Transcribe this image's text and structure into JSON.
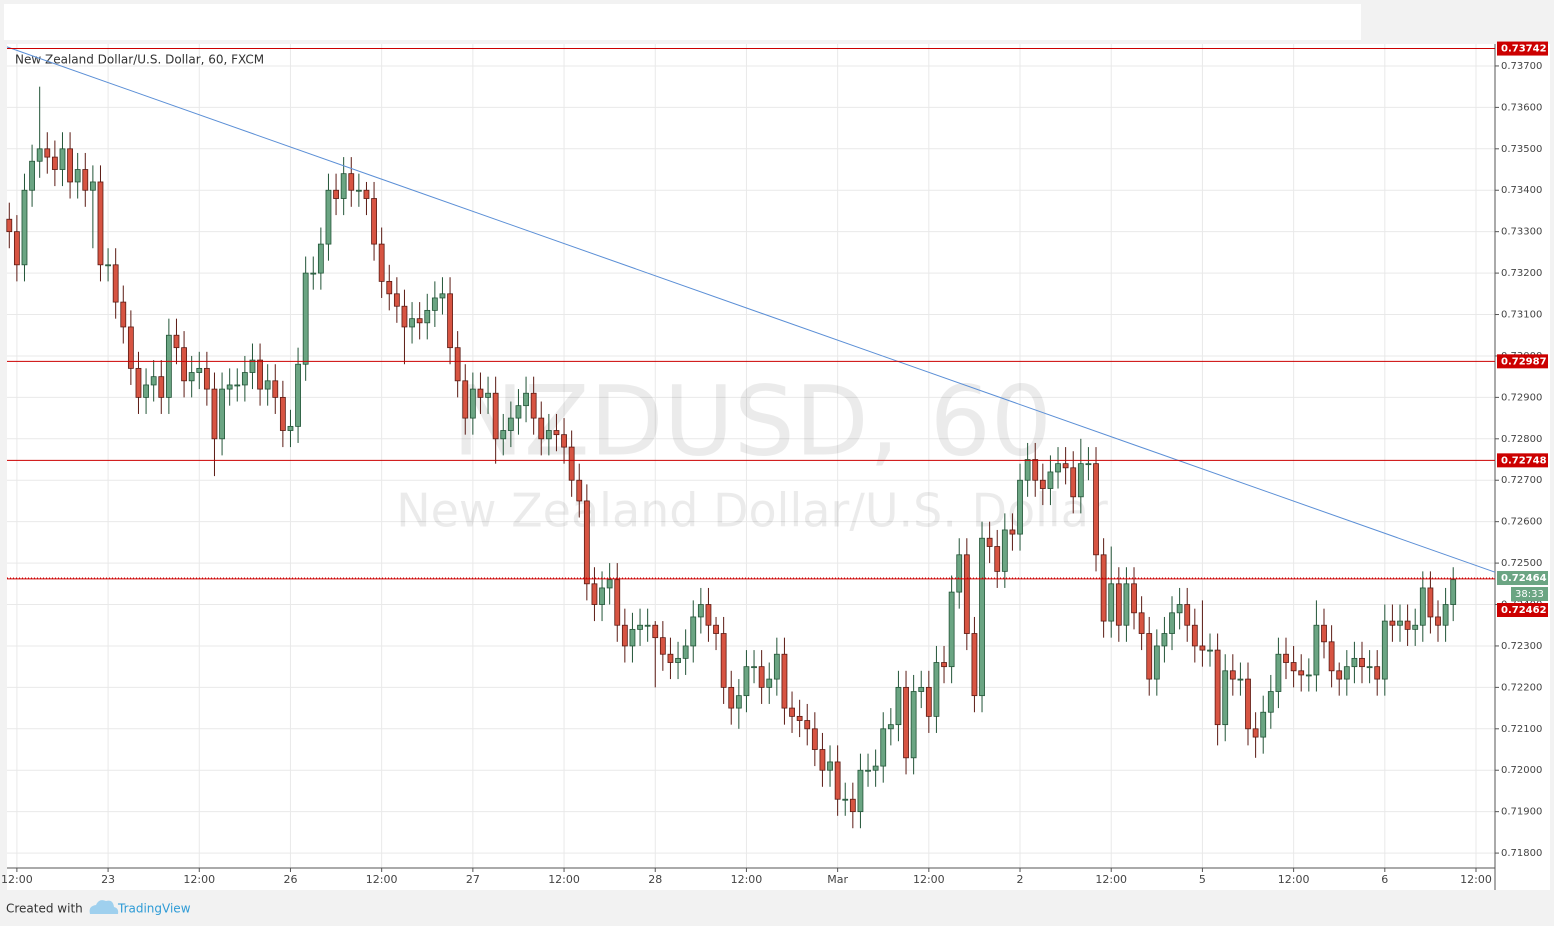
{
  "chart_data": {
    "type": "candlestick",
    "title": "New Zealand Dollar/U.S. Dollar, 60, FXCM",
    "watermark_symbol": "NZDUSD, 60",
    "watermark_name": "New Zealand Dollar/U.S. Dollar",
    "up_color": "#6ba583",
    "down_color": "#d75442",
    "grid": true,
    "xlim": [
      -13.3,
      182.5
    ],
    "ylim": [
      0.71764,
      0.73753
    ],
    "xticks": [
      {
        "value": -12,
        "label": "12:00"
      },
      {
        "value": 0,
        "label": "23"
      },
      {
        "value": 12,
        "label": "12:00"
      },
      {
        "value": 24,
        "label": "26"
      },
      {
        "value": 36,
        "label": "12:00"
      },
      {
        "value": 48,
        "label": "27"
      },
      {
        "value": 60,
        "label": "12:00"
      },
      {
        "value": 72,
        "label": "28"
      },
      {
        "value": 84,
        "label": "12:00"
      },
      {
        "value": 96,
        "label": "Mar"
      },
      {
        "value": 108,
        "label": "12:00"
      },
      {
        "value": 120,
        "label": "2"
      },
      {
        "value": 132,
        "label": "12:00"
      },
      {
        "value": 144,
        "label": "5"
      },
      {
        "value": 156,
        "label": "12:00"
      },
      {
        "value": 168,
        "label": "6"
      },
      {
        "value": 180,
        "label": "12:00"
      }
    ],
    "yticks": [
      {
        "value": 0.718,
        "label": "0.71800"
      },
      {
        "value": 0.719,
        "label": "0.71900"
      },
      {
        "value": 0.72,
        "label": "0.72000"
      },
      {
        "value": 0.721,
        "label": "0.72100"
      },
      {
        "value": 0.722,
        "label": "0.72200"
      },
      {
        "value": 0.723,
        "label": "0.72300"
      },
      {
        "value": 0.724,
        "label": "0.72400"
      },
      {
        "value": 0.725,
        "label": "0.72500"
      },
      {
        "value": 0.726,
        "label": "0.72600"
      },
      {
        "value": 0.727,
        "label": "0.72700"
      },
      {
        "value": 0.728,
        "label": "0.72800"
      },
      {
        "value": 0.729,
        "label": "0.72900"
      },
      {
        "value": 0.73,
        "label": "0.73000"
      },
      {
        "value": 0.731,
        "label": "0.73100"
      },
      {
        "value": 0.732,
        "label": "0.73200"
      },
      {
        "value": 0.733,
        "label": "0.73300"
      },
      {
        "value": 0.734,
        "label": "0.73400"
      },
      {
        "value": 0.735,
        "label": "0.73500"
      },
      {
        "value": 0.736,
        "label": "0.73600"
      },
      {
        "value": 0.737,
        "label": "0.73700"
      }
    ],
    "x": [
      -13,
      -12,
      -11,
      -10,
      -9,
      -8,
      -7,
      -6,
      -5,
      -4,
      -3,
      -2,
      -1,
      0,
      1,
      2,
      3,
      4,
      5,
      6,
      7,
      8,
      9,
      10,
      11,
      12,
      13,
      14,
      15,
      16,
      17,
      18,
      19,
      20,
      21,
      22,
      23,
      24,
      25,
      26,
      27,
      28,
      29,
      30,
      31,
      32,
      33,
      34,
      35,
      36,
      37,
      38,
      39,
      40,
      41,
      42,
      43,
      44,
      45,
      46,
      47,
      48,
      49,
      50,
      51,
      52,
      53,
      54,
      55,
      56,
      57,
      58,
      59,
      60,
      61,
      62,
      63,
      64,
      65,
      66,
      67,
      68,
      69,
      70,
      71,
      72,
      73,
      74,
      75,
      76,
      77,
      78,
      79,
      80,
      81,
      82,
      83,
      84,
      85,
      86,
      87,
      88,
      89,
      90,
      91,
      92,
      93,
      94,
      95,
      96,
      97,
      98,
      99,
      100,
      101,
      102,
      103,
      104,
      105,
      106,
      107,
      108,
      109,
      110,
      111,
      112,
      113,
      114,
      115,
      116,
      117,
      118,
      119,
      120,
      121,
      122,
      123,
      124,
      125,
      126,
      127,
      128,
      129,
      130,
      131,
      132,
      133,
      134,
      135,
      136,
      137,
      138,
      139,
      140,
      141,
      142,
      143,
      144,
      145,
      146,
      147,
      148,
      149,
      150,
      151,
      152,
      153,
      154,
      155,
      156,
      157,
      158,
      159,
      160,
      161,
      162,
      163,
      164,
      165,
      166,
      167,
      168,
      169,
      170,
      171,
      172,
      173,
      174,
      175,
      176,
      177
    ],
    "open": [
      0.7333,
      0.733,
      0.7322,
      0.734,
      0.7347,
      0.735,
      0.7348,
      0.7345,
      0.735,
      0.7342,
      0.7345,
      0.734,
      0.7342,
      0.7322,
      0.7322,
      0.7313,
      0.7307,
      0.7297,
      0.729,
      0.7293,
      0.7295,
      0.729,
      0.7305,
      0.7302,
      0.7294,
      0.7296,
      0.7297,
      0.7292,
      0.728,
      0.7292,
      0.7293,
      0.7293,
      0.7296,
      0.7299,
      0.7292,
      0.7294,
      0.729,
      0.7282,
      0.7283,
      0.7298,
      0.732,
      0.732,
      0.7327,
      0.734,
      0.7338,
      0.7344,
      0.734,
      0.734,
      0.7338,
      0.7327,
      0.7318,
      0.7315,
      0.7312,
      0.7307,
      0.7309,
      0.7308,
      0.7311,
      0.7314,
      0.7315,
      0.7302,
      0.7294,
      0.7285,
      0.7292,
      0.729,
      0.7291,
      0.728,
      0.7282,
      0.7285,
      0.7288,
      0.7291,
      0.7285,
      0.728,
      0.7282,
      0.7281,
      0.7278,
      0.727,
      0.7265,
      0.7245,
      0.724,
      0.7244,
      0.7246,
      0.7235,
      0.723,
      0.7234,
      0.7235,
      0.7235,
      0.7232,
      0.7228,
      0.7226,
      0.7227,
      0.723,
      0.7237,
      0.724,
      0.7235,
      0.7233,
      0.722,
      0.7215,
      0.7218,
      0.7225,
      0.7225,
      0.722,
      0.7222,
      0.7228,
      0.7215,
      0.7213,
      0.7212,
      0.721,
      0.7205,
      0.72,
      0.7202,
      0.7193,
      0.7193,
      0.719,
      0.72,
      0.72,
      0.7201,
      0.721,
      0.7211,
      0.722,
      0.7203,
      0.7219,
      0.722,
      0.7213,
      0.7226,
      0.7225,
      0.7243,
      0.7252,
      0.7233,
      0.7218,
      0.7256,
      0.7254,
      0.7248,
      0.7258,
      0.7257,
      0.727,
      0.7275,
      0.727,
      0.7268,
      0.7272,
      0.7274,
      0.7273,
      0.7266,
      0.7274,
      0.7274,
      0.7252,
      0.7236,
      0.7245,
      0.7235,
      0.7245,
      0.7238,
      0.7233,
      0.7222,
      0.723,
      0.7233,
      0.7238,
      0.724,
      0.7235,
      0.723,
      0.7229,
      0.7229,
      0.7211,
      0.7224,
      0.7222,
      0.7222,
      0.721,
      0.7208,
      0.7214,
      0.7219,
      0.7228,
      0.7226,
      0.7224,
      0.7223,
      0.7223,
      0.7235,
      0.7231,
      0.7224,
      0.7222,
      0.7225,
      0.7227,
      0.7225,
      0.7225,
      0.7222,
      0.7236,
      0.7235,
      0.7236,
      0.7234,
      0.7235,
      0.7244,
      0.7237,
      0.7235,
      0.724
    ],
    "high": [
      0.7337,
      0.7334,
      0.7344,
      0.7351,
      0.7365,
      0.7354,
      0.7352,
      0.7354,
      0.7354,
      0.7349,
      0.7349,
      0.7346,
      0.7346,
      0.7326,
      0.7326,
      0.7317,
      0.7311,
      0.7301,
      0.7297,
      0.7299,
      0.7299,
      0.7309,
      0.7309,
      0.7306,
      0.73,
      0.7301,
      0.7301,
      0.7296,
      0.7296,
      0.7297,
      0.7297,
      0.73,
      0.7303,
      0.7303,
      0.7298,
      0.7298,
      0.7294,
      0.7287,
      0.7302,
      0.7324,
      0.7324,
      0.7331,
      0.7344,
      0.7344,
      0.7348,
      0.7348,
      0.7344,
      0.7342,
      0.7342,
      0.7331,
      0.7322,
      0.7319,
      0.7316,
      0.7313,
      0.7313,
      0.7315,
      0.7318,
      0.7319,
      0.7319,
      0.7306,
      0.7298,
      0.7296,
      0.7296,
      0.7295,
      0.7295,
      0.7286,
      0.7289,
      0.7292,
      0.7295,
      0.7295,
      0.7289,
      0.7286,
      0.7286,
      0.7285,
      0.7282,
      0.7274,
      0.7269,
      0.7249,
      0.7248,
      0.725,
      0.725,
      0.7239,
      0.7238,
      0.7239,
      0.7239,
      0.7236,
      0.7236,
      0.7232,
      0.7231,
      0.7234,
      0.7241,
      0.7244,
      0.7244,
      0.7237,
      0.7237,
      0.7224,
      0.7222,
      0.7229,
      0.7229,
      0.7229,
      0.7226,
      0.7232,
      0.7232,
      0.7219,
      0.7217,
      0.7216,
      0.7214,
      0.7209,
      0.7206,
      0.7206,
      0.7197,
      0.7197,
      0.7204,
      0.7204,
      0.7205,
      0.7214,
      0.7215,
      0.7224,
      0.7224,
      0.7223,
      0.7224,
      0.7224,
      0.723,
      0.723,
      0.7247,
      0.7256,
      0.7256,
      0.7237,
      0.726,
      0.726,
      0.7258,
      0.7262,
      0.7262,
      0.7274,
      0.7279,
      0.7279,
      0.7274,
      0.7276,
      0.7278,
      0.7278,
      0.7277,
      0.728,
      0.7278,
      0.7278,
      0.7256,
      0.7254,
      0.7249,
      0.7249,
      0.7249,
      0.7242,
      0.7237,
      0.7234,
      0.7237,
      0.7242,
      0.7244,
      0.7244,
      0.7239,
      0.7241,
      0.7233,
      0.7233,
      0.7228,
      0.7228,
      0.7226,
      0.7226,
      0.7214,
      0.7218,
      0.7223,
      0.7232,
      0.7232,
      0.723,
      0.7228,
      0.7227,
      0.7241,
      0.7239,
      0.7235,
      0.7226,
      0.7229,
      0.7231,
      0.7231,
      0.7229,
      0.7229,
      0.724,
      0.724,
      0.724,
      0.724,
      0.7239,
      0.7248,
      0.7248,
      0.7241,
      0.7244,
      0.7249
    ],
    "low": [
      0.7326,
      0.7318,
      0.7318,
      0.7336,
      0.7343,
      0.7344,
      0.7341,
      0.7341,
      0.7338,
      0.7338,
      0.7336,
      0.7326,
      0.7318,
      0.7318,
      0.7309,
      0.7303,
      0.7293,
      0.7286,
      0.7286,
      0.7289,
      0.7286,
      0.7286,
      0.7298,
      0.729,
      0.729,
      0.7292,
      0.7288,
      0.7271,
      0.7276,
      0.7288,
      0.7289,
      0.7289,
      0.7292,
      0.7288,
      0.7288,
      0.7286,
      0.7278,
      0.7278,
      0.7279,
      0.7294,
      0.7316,
      0.7316,
      0.7323,
      0.7334,
      0.7334,
      0.7336,
      0.7336,
      0.7334,
      0.7323,
      0.7314,
      0.7311,
      0.7308,
      0.7298,
      0.7303,
      0.7304,
      0.7304,
      0.7307,
      0.731,
      0.7298,
      0.729,
      0.7281,
      0.7281,
      0.7286,
      0.7286,
      0.7274,
      0.7276,
      0.7278,
      0.7281,
      0.7284,
      0.7281,
      0.7276,
      0.7276,
      0.7277,
      0.7274,
      0.7266,
      0.7261,
      0.7241,
      0.7236,
      0.7236,
      0.724,
      0.7231,
      0.7226,
      0.7226,
      0.723,
      0.7231,
      0.722,
      0.7224,
      0.7222,
      0.7222,
      0.7223,
      0.7226,
      0.7233,
      0.7231,
      0.7229,
      0.7216,
      0.7211,
      0.721,
      0.7214,
      0.7221,
      0.7216,
      0.7216,
      0.7218,
      0.7211,
      0.7209,
      0.7208,
      0.7206,
      0.7201,
      0.7196,
      0.7196,
      0.7189,
      0.7189,
      0.7186,
      0.7186,
      0.7196,
      0.7196,
      0.7197,
      0.7206,
      0.7207,
      0.7199,
      0.7199,
      0.7215,
      0.7209,
      0.7209,
      0.7221,
      0.7221,
      0.7239,
      0.7229,
      0.7214,
      0.7214,
      0.725,
      0.7244,
      0.7244,
      0.7253,
      0.7253,
      0.7266,
      0.7266,
      0.7264,
      0.7264,
      0.7268,
      0.7269,
      0.7262,
      0.7262,
      0.727,
      0.7248,
      0.7232,
      0.7232,
      0.7231,
      0.7231,
      0.7234,
      0.7229,
      0.7218,
      0.7218,
      0.7226,
      0.7229,
      0.7234,
      0.7231,
      0.7226,
      0.7225,
      0.7225,
      0.7206,
      0.7207,
      0.7218,
      0.7218,
      0.7206,
      0.7203,
      0.7204,
      0.721,
      0.7215,
      0.7222,
      0.722,
      0.7219,
      0.7219,
      0.7219,
      0.7227,
      0.722,
      0.7218,
      0.7218,
      0.7221,
      0.7221,
      0.7221,
      0.7218,
      0.7218,
      0.7231,
      0.7231,
      0.723,
      0.723,
      0.7231,
      0.7233,
      0.7231,
      0.7231,
      0.7236
    ],
    "close": [
      0.733,
      0.7322,
      0.734,
      0.7347,
      0.735,
      0.7348,
      0.7345,
      0.735,
      0.7342,
      0.7345,
      0.734,
      0.7342,
      0.7322,
      0.7322,
      0.7313,
      0.7307,
      0.7297,
      0.729,
      0.7293,
      0.7295,
      0.729,
      0.7305,
      0.7302,
      0.7294,
      0.7296,
      0.7297,
      0.7292,
      0.728,
      0.7292,
      0.7293,
      0.7293,
      0.7296,
      0.7299,
      0.7292,
      0.7294,
      0.729,
      0.7282,
      0.7283,
      0.7298,
      0.732,
      0.732,
      0.7327,
      0.734,
      0.7338,
      0.7344,
      0.734,
      0.734,
      0.7338,
      0.7327,
      0.7318,
      0.7315,
      0.7312,
      0.7307,
      0.7309,
      0.7308,
      0.7311,
      0.7314,
      0.7315,
      0.7302,
      0.7294,
      0.7285,
      0.7292,
      0.729,
      0.7291,
      0.728,
      0.7282,
      0.7285,
      0.7288,
      0.7291,
      0.7285,
      0.728,
      0.7282,
      0.7281,
      0.7278,
      0.727,
      0.7265,
      0.7245,
      0.724,
      0.7244,
      0.7246,
      0.7235,
      0.723,
      0.7234,
      0.7235,
      0.7235,
      0.7232,
      0.7228,
      0.7226,
      0.7227,
      0.723,
      0.7237,
      0.724,
      0.7235,
      0.7233,
      0.722,
      0.7215,
      0.7218,
      0.7225,
      0.7225,
      0.722,
      0.7222,
      0.7228,
      0.7215,
      0.7213,
      0.7212,
      0.721,
      0.7205,
      0.72,
      0.7202,
      0.7193,
      0.7193,
      0.719,
      0.72,
      0.72,
      0.7201,
      0.721,
      0.7211,
      0.722,
      0.7203,
      0.7219,
      0.722,
      0.7213,
      0.7226,
      0.7225,
      0.7243,
      0.7252,
      0.7233,
      0.7218,
      0.7256,
      0.7254,
      0.7248,
      0.7258,
      0.7257,
      0.727,
      0.7275,
      0.727,
      0.7268,
      0.7272,
      0.7274,
      0.7273,
      0.7266,
      0.7274,
      0.7274,
      0.7252,
      0.7236,
      0.7245,
      0.7235,
      0.7245,
      0.7238,
      0.7233,
      0.7222,
      0.723,
      0.7233,
      0.7238,
      0.724,
      0.7235,
      0.723,
      0.7229,
      0.7229,
      0.7211,
      0.7224,
      0.7222,
      0.7222,
      0.721,
      0.7208,
      0.7214,
      0.7219,
      0.7228,
      0.7226,
      0.7224,
      0.7223,
      0.7223,
      0.7235,
      0.7231,
      0.7224,
      0.7222,
      0.7225,
      0.7227,
      0.7225,
      0.7225,
      0.7222,
      0.7236,
      0.7235,
      0.7236,
      0.7234,
      0.7235,
      0.7244,
      0.7237,
      0.7235,
      0.724,
      0.7246
    ],
    "levels": {
      "values": [
        0.73742,
        0.72987,
        0.72748,
        0.72462
      ],
      "color": "#cc0000"
    },
    "last_price": {
      "value": 0.72464,
      "countdown": "38:33",
      "color": "#6ba583"
    },
    "trendline": {
      "x": [
        -13.3,
        182.5
      ],
      "y": [
        0.73746,
        0.72478
      ],
      "color": "#5b8fd6"
    }
  },
  "footer": {
    "created_with": "Created with",
    "brand": "TradingView"
  }
}
